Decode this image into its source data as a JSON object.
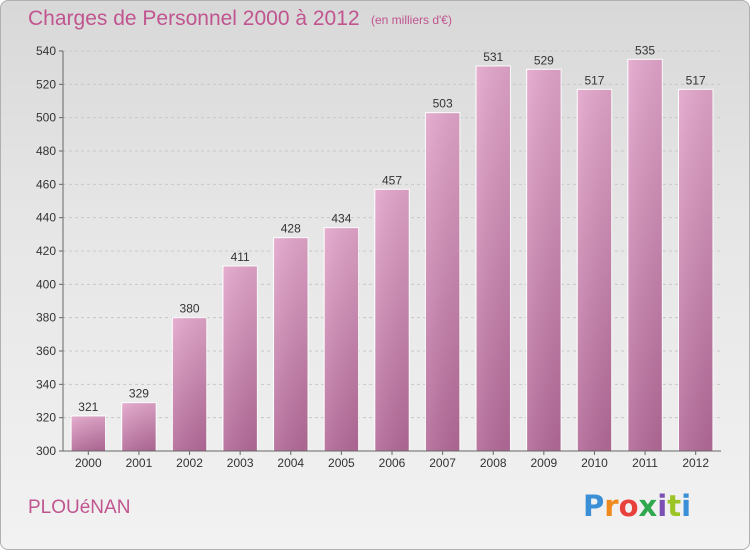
{
  "header": {
    "title": "Charges de Personnel 2000 à 2012",
    "subtitle": "(en milliers d'€)"
  },
  "footer": {
    "commune": "PLOUéNAN",
    "brand": "Proxiti"
  },
  "colors": {
    "bar_light": "#e3a6cb",
    "bar_dark": "#b36a98",
    "title": "#c0558f",
    "logo": [
      "#3a8fd6",
      "#f08a1e",
      "#e8403a",
      "#2fa84f",
      "#7b4fb3",
      "#9bc425"
    ]
  },
  "chart_data": {
    "type": "bar",
    "categories": [
      "2000",
      "2001",
      "2002",
      "2003",
      "2004",
      "2005",
      "2006",
      "2007",
      "2008",
      "2009",
      "2010",
      "2011",
      "2012"
    ],
    "values": [
      321,
      329,
      380,
      411,
      428,
      434,
      457,
      503,
      531,
      529,
      517,
      535,
      517
    ],
    "title": "Charges de Personnel 2000 à 2012",
    "subtitle": "(en milliers d'€)",
    "xlabel": "",
    "ylabel": "",
    "ylim": [
      300,
      540
    ],
    "yticks": [
      300,
      320,
      340,
      360,
      380,
      400,
      420,
      440,
      460,
      480,
      500,
      520,
      540
    ],
    "grid": true,
    "legend": "none"
  }
}
